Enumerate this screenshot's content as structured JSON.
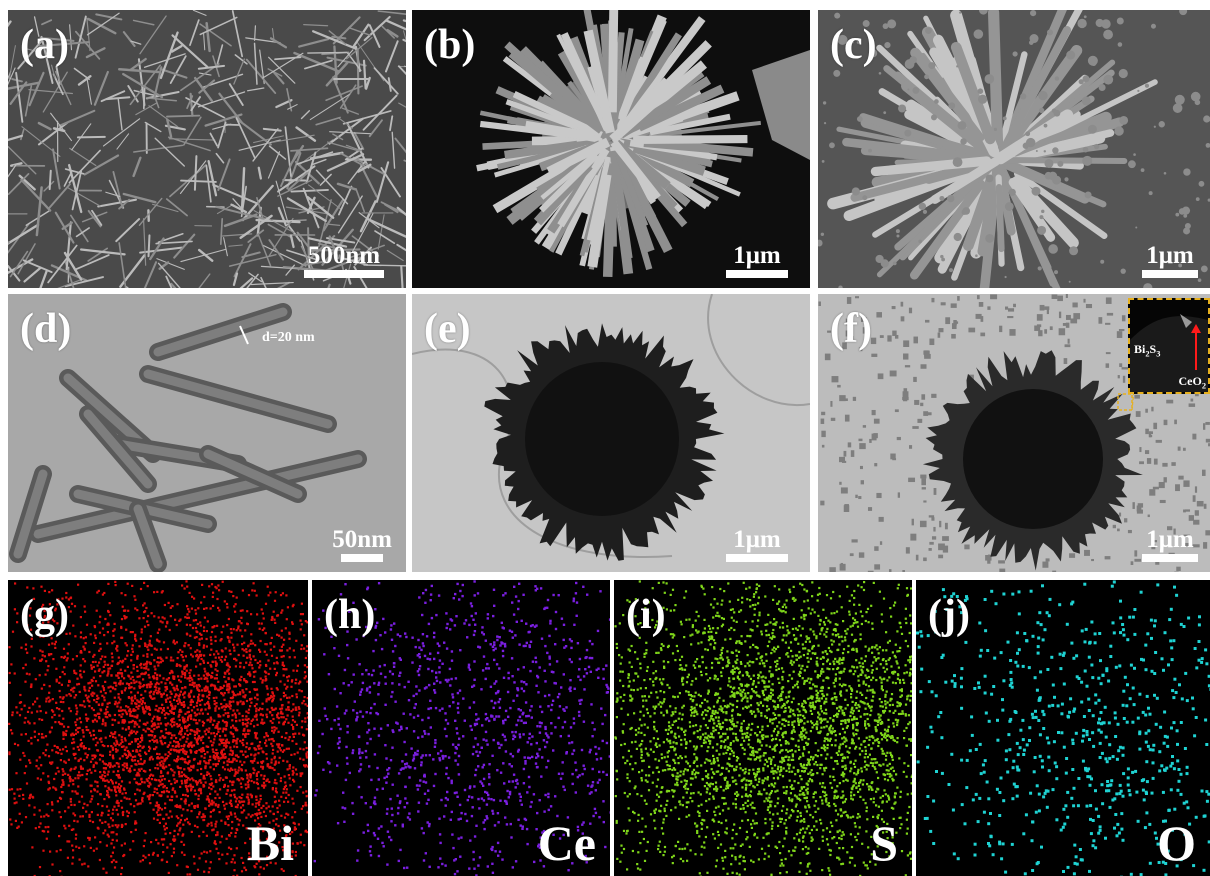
{
  "panels": {
    "a": {
      "label": "(a)",
      "scale": "500nm"
    },
    "b": {
      "label": "(b)",
      "scale": "1μm"
    },
    "c": {
      "label": "(c)",
      "scale": "1μm"
    },
    "d": {
      "label": "(d)",
      "scale": "50nm",
      "annotation": "d=20 nm"
    },
    "e": {
      "label": "(e)",
      "scale": "1μm"
    },
    "f": {
      "label": "(f)",
      "scale": "1μm",
      "inset_bi": "Bi",
      "inset_bi_sub1": "2",
      "inset_bi_s": "S",
      "inset_bi_sub2": "3",
      "inset_ce": "CeO",
      "inset_ce_sub": "2"
    },
    "g": {
      "label": "(g)",
      "element": "Bi",
      "color": "#e01010"
    },
    "h": {
      "label": "(h)",
      "element": "Ce",
      "color": "#7a1fe0"
    },
    "i": {
      "label": "(i)",
      "element": "S",
      "color": "#7fd61a"
    },
    "j": {
      "label": "(j)",
      "element": "O",
      "color": "#1fd3d3"
    }
  }
}
